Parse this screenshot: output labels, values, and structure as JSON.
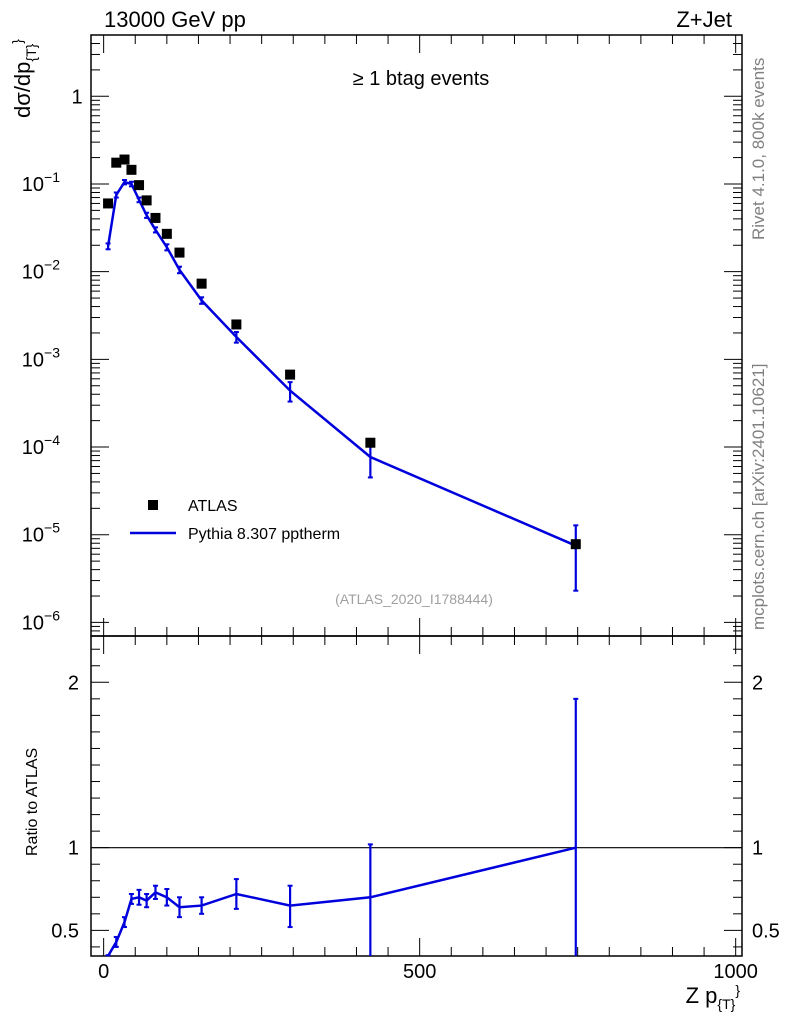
{
  "header": {
    "left": "13000 GeV pp",
    "right": "Z+Jet"
  },
  "side_text": {
    "top": "Rivet 4.1.0,  800k events",
    "bottom": "mcplots.cern.ch [arXiv:2401.10621]"
  },
  "chart_data": [
    {
      "type": "scatter",
      "panel": "main",
      "title": "≥ 1 btag events",
      "ylabel": "dσ/dp",
      "ylabel_sub": "{T}",
      "ylabel_sup": "}",
      "yscale": "log",
      "ylim": [
        7e-07,
        5
      ],
      "xlim": [
        -20,
        1010
      ],
      "yticks": [
        {
          "value": 1e-06,
          "base": "10",
          "exp": "−6"
        },
        {
          "value": 1e-05,
          "base": "10",
          "exp": "−5"
        },
        {
          "value": 0.0001,
          "base": "10",
          "exp": "−4"
        },
        {
          "value": 0.001,
          "base": "10",
          "exp": "−3"
        },
        {
          "value": 0.01,
          "base": "10",
          "exp": "−2"
        },
        {
          "value": 0.1,
          "base": "10",
          "exp": "−1"
        },
        {
          "value": 1,
          "base": "1",
          "exp": ""
        }
      ],
      "watermark": "(ATLAS_2020_I1788444)",
      "legend": {
        "placement": "bottom-left",
        "entries": [
          "ATLAS",
          "Pythia 8.307 pptherm"
        ]
      },
      "series": [
        {
          "name": "ATLAS",
          "style": "markers",
          "color": "#000000",
          "x": [
            7,
            20,
            33,
            44,
            56,
            68,
            82,
            100,
            120,
            155,
            210,
            295,
            422,
            747
          ],
          "y": [
            0.06,
            0.175,
            0.19,
            0.145,
            0.097,
            0.065,
            0.041,
            0.027,
            0.0165,
            0.0073,
            0.0025,
            0.00067,
            0.000112,
            7.8e-06
          ]
        },
        {
          "name": "Pythia 8.307 pptherm",
          "style": "line",
          "color": "#0000dd",
          "x": [
            7,
            20,
            33,
            44,
            56,
            68,
            82,
            100,
            120,
            155,
            210,
            295,
            422,
            747
          ],
          "y": [
            0.0195,
            0.075,
            0.105,
            0.1,
            0.066,
            0.044,
            0.03,
            0.019,
            0.0105,
            0.0047,
            0.0018,
            0.00044,
            7.7e-05,
            7.5e-06
          ],
          "y_err_low": [
            0.018,
            0.07,
            0.099,
            0.094,
            0.062,
            0.041,
            0.028,
            0.0175,
            0.0096,
            0.0043,
            0.00155,
            0.00033,
            4.5e-05,
            2.3e-06
          ],
          "y_err_high": [
            0.021,
            0.08,
            0.111,
            0.106,
            0.07,
            0.047,
            0.032,
            0.0205,
            0.0114,
            0.0051,
            0.00205,
            0.00055,
            0.000108,
            1.28e-05
          ]
        }
      ]
    },
    {
      "type": "line",
      "panel": "ratio",
      "ylabel": "Ratio to ATLAS",
      "xlabel": "Z p",
      "xlabel_sub": "{T}",
      "xlabel_sup": "}",
      "ylim": [
        0.345,
        2.28
      ],
      "xlim": [
        -20,
        1010
      ],
      "xticks": [
        0,
        500,
        1000
      ],
      "yticks": [
        0.5,
        1,
        2
      ],
      "reference_line": 1,
      "series": [
        {
          "name": "Pythia 8.307 pptherm / ATLAS",
          "color": "#0000dd",
          "x": [
            7,
            20,
            33,
            44,
            56,
            68,
            82,
            100,
            120,
            155,
            210,
            295,
            422,
            747
          ],
          "y": [
            0.325,
            0.43,
            0.55,
            0.69,
            0.7,
            0.68,
            0.73,
            0.7,
            0.64,
            0.65,
            0.72,
            0.65,
            0.7,
            1.0
          ],
          "y_err_low": [
            0.3,
            0.4,
            0.52,
            0.66,
            0.655,
            0.64,
            0.69,
            0.65,
            0.58,
            0.6,
            0.63,
            0.52,
            0.32,
            0.32
          ],
          "y_err_high": [
            0.35,
            0.46,
            0.58,
            0.72,
            0.745,
            0.72,
            0.77,
            0.75,
            0.7,
            0.7,
            0.81,
            0.77,
            1.02,
            1.9
          ]
        }
      ]
    }
  ]
}
